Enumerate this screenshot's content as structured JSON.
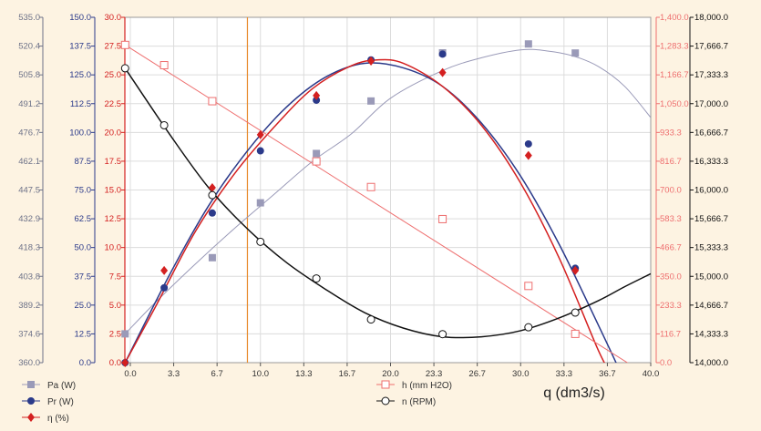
{
  "chart_data": {
    "type": "scatter",
    "xlabel": "q (dm3/s)",
    "xlim": [
      -0.5,
      40.0
    ],
    "x_ticks": [
      "0.0",
      "3.3",
      "6.7",
      "10.0",
      "13.3",
      "16.7",
      "20.0",
      "23.3",
      "26.7",
      "30.0",
      "33.3",
      "36.7",
      "40.0"
    ],
    "vertical_marker_x": 9.0,
    "grid": true,
    "axes": {
      "pa": {
        "ticks": [
          "360.0",
          "374.6",
          "389.2",
          "403.8",
          "418.3",
          "432.9",
          "447.5",
          "462.1",
          "476.7",
          "491.2",
          "505.8",
          "520.4",
          "535.0"
        ],
        "range": [
          360.0,
          535.0
        ],
        "color": "#6d7288"
      },
      "pr": {
        "ticks": [
          "0.0",
          "12.5",
          "25.0",
          "37.5",
          "50.0",
          "62.5",
          "75.0",
          "87.5",
          "100.0",
          "112.5",
          "125.0",
          "137.5",
          "150.0"
        ],
        "range": [
          0,
          150
        ],
        "color": "#2b3a8a"
      },
      "eta": {
        "ticks": [
          "0.0",
          "2.5",
          "5.0",
          "7.5",
          "10.0",
          "12.5",
          "15.0",
          "17.5",
          "20.0",
          "22.5",
          "25.0",
          "27.5",
          "30.0"
        ],
        "range": [
          0,
          30
        ],
        "color": "#d42020"
      },
      "h": {
        "ticks": [
          "0.0",
          "116.7",
          "233.3",
          "350.0",
          "466.7",
          "583.3",
          "700.0",
          "816.7",
          "933.3",
          "1,050.0",
          "1,166.7",
          "1,283.3",
          "1,400.0"
        ],
        "range": [
          0,
          1400
        ],
        "color": "#ee6f6f"
      },
      "n": {
        "ticks": [
          "14,000.0",
          "14,333.3",
          "14,666.7",
          "15,000.0",
          "15,333.3",
          "15,666.7",
          "16,000.0",
          "16,333.3",
          "16,666.7",
          "17,000.0",
          "17,333.3",
          "17,666.7",
          "18,000.0"
        ],
        "range": [
          14000,
          18000
        ],
        "color": "#111111"
      }
    },
    "series": [
      {
        "name": "Pa (W)",
        "axis": "pa",
        "marker": "square-filled",
        "color": "#9a9ab8",
        "x": [
          -0.4,
          6.3,
          10.0,
          14.3,
          18.5,
          24.0,
          30.6,
          34.2
        ],
        "y": [
          374.6,
          413.2,
          441.0,
          466.0,
          492.6,
          517.0,
          521.5,
          516.9
        ],
        "fit": [
          [
            -0.4,
            374.6
          ],
          [
            2.0,
            391.0
          ],
          [
            5.0,
            410.0
          ],
          [
            8.0,
            428.0
          ],
          [
            11.0,
            445.0
          ],
          [
            14.0,
            462.0
          ],
          [
            17.0,
            476.0
          ],
          [
            20.0,
            494.0
          ],
          [
            24.0,
            508.0
          ],
          [
            27.0,
            514.5
          ],
          [
            30.0,
            518.5
          ],
          [
            32.0,
            518.0
          ],
          [
            34.0,
            515.5
          ],
          [
            36.0,
            510.0
          ],
          [
            38.0,
            500.0
          ],
          [
            40.0,
            484.2
          ]
        ]
      },
      {
        "name": "Pr (W)",
        "axis": "pr",
        "marker": "circle-filled",
        "color": "#2b3a8a",
        "x": [
          -0.4,
          2.6,
          6.3,
          10.0,
          14.3,
          18.5,
          24.0,
          30.6,
          34.2
        ],
        "y": [
          0.0,
          32.5,
          65.0,
          92.0,
          114.0,
          131.5,
          134.0,
          95.0,
          41.0
        ],
        "fit": [
          [
            -0.4,
            0.0
          ],
          [
            3.0,
            38.0
          ],
          [
            6.0,
            68.0
          ],
          [
            9.0,
            92.0
          ],
          [
            12.0,
            111.0
          ],
          [
            15.0,
            124.0
          ],
          [
            18.0,
            130.0
          ],
          [
            21.0,
            128.0
          ],
          [
            24.0,
            120.0
          ],
          [
            27.0,
            104.0
          ],
          [
            30.0,
            81.0
          ],
          [
            33.0,
            51.0
          ],
          [
            36.0,
            16.0
          ],
          [
            37.5,
            -2.0
          ]
        ]
      },
      {
        "name": "η (%)",
        "axis": "eta",
        "marker": "diamond-filled",
        "color": "#d42020",
        "x": [
          -0.4,
          2.6,
          6.3,
          10.0,
          14.3,
          18.5,
          24.0,
          30.6,
          34.2
        ],
        "y": [
          0.0,
          8.0,
          15.2,
          19.8,
          23.2,
          26.2,
          25.2,
          18.0,
          8.0
        ],
        "fit": [
          [
            -0.4,
            0.0
          ],
          [
            2.0,
            5.0
          ],
          [
            5.0,
            11.4
          ],
          [
            8.0,
            16.4
          ],
          [
            11.0,
            20.4
          ],
          [
            14.0,
            23.8
          ],
          [
            17.0,
            25.8
          ],
          [
            19.0,
            26.3
          ],
          [
            21.0,
            26.0
          ],
          [
            24.0,
            24.0
          ],
          [
            27.0,
            20.6
          ],
          [
            30.0,
            15.6
          ],
          [
            33.0,
            9.0
          ],
          [
            36.0,
            1.0
          ],
          [
            37.0,
            -1.0
          ]
        ]
      },
      {
        "name": "h (mm H2O)",
        "axis": "h",
        "marker": "square-open",
        "color": "#ee6f6f",
        "x": [
          -0.4,
          2.6,
          6.3,
          14.3,
          18.5,
          24.0,
          30.6,
          34.2
        ],
        "y": [
          1288,
          1206,
          1060,
          816,
          712,
          582,
          311,
          116.7
        ],
        "fit": [
          [
            -0.4,
            1288
          ],
          [
            40.0,
            -60
          ]
        ]
      },
      {
        "name": "n (RPM)",
        "axis": "n",
        "marker": "circle-open",
        "color": "#111111",
        "x": [
          -0.4,
          2.6,
          6.3,
          10.0,
          14.3,
          18.5,
          24.0,
          30.6,
          34.2
        ],
        "y": [
          17410,
          16750,
          15940,
          15400,
          14975,
          14500,
          14330,
          14410,
          14580
        ],
        "fit": [
          [
            -0.4,
            17410
          ],
          [
            3.0,
            16650
          ],
          [
            6.0,
            16030
          ],
          [
            9.0,
            15550
          ],
          [
            12.0,
            15160
          ],
          [
            15.0,
            14850
          ],
          [
            18.0,
            14580
          ],
          [
            21.0,
            14400
          ],
          [
            24.0,
            14300
          ],
          [
            27.0,
            14300
          ],
          [
            30.0,
            14370
          ],
          [
            33.0,
            14520
          ],
          [
            36.0,
            14720
          ],
          [
            38.0,
            14880
          ],
          [
            40.0,
            15030
          ]
        ]
      }
    ]
  }
}
